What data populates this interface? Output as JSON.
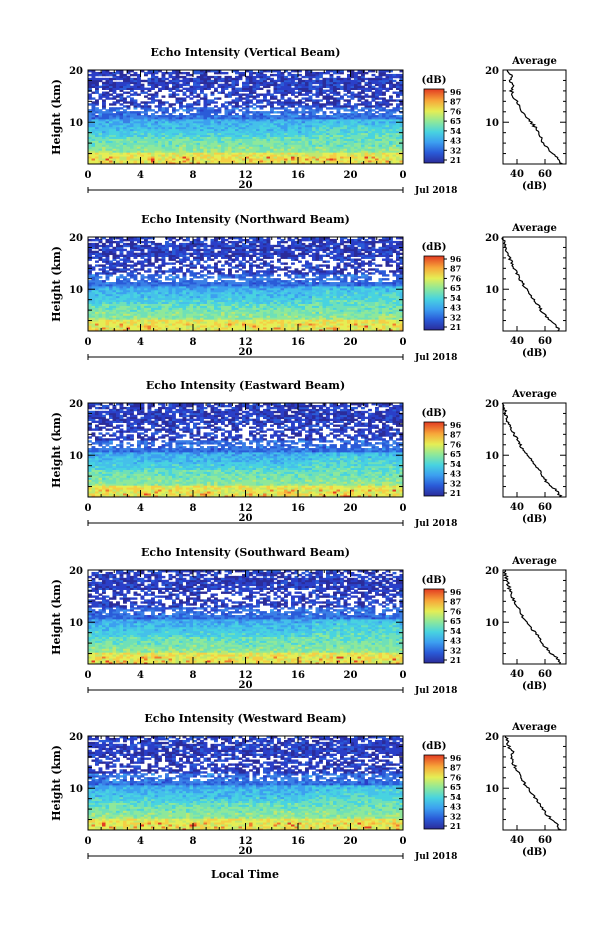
{
  "figure": {
    "xlabel_bottom": "Local Time",
    "date_label": "Jul 2018",
    "day_label": "20",
    "colorbar_unit": "(dB)",
    "colorbar_ticks": [
      "96",
      "87",
      "76",
      "65",
      "54",
      "43",
      "32",
      "21"
    ],
    "avg_title": "Average",
    "avg_xlabel": "(dB)"
  },
  "chart_data": [
    {
      "type": "heatmap",
      "title": "Echo Intensity (Vertical Beam)",
      "ylabel": "Height (km)",
      "xlim": [
        0,
        24
      ],
      "ylim": [
        2,
        20
      ],
      "x_ticks": [
        "0",
        "4",
        "8",
        "12",
        "16",
        "20",
        "0"
      ],
      "y_ticks": [
        "20",
        "10"
      ],
      "colorbar": {
        "label": "(dB)",
        "range": [
          21,
          96
        ],
        "ticks": [
          "96",
          "87",
          "76",
          "65",
          "54",
          "43",
          "32",
          "21"
        ]
      },
      "average_profile": {
        "type": "line",
        "title": "Average",
        "xlabel": "(dB)",
        "x_ticks": [
          "40",
          "60"
        ],
        "xlim": [
          30,
          75
        ],
        "height_km": [
          2,
          3,
          4,
          5,
          6,
          7,
          8,
          9,
          10,
          11,
          12,
          13,
          14,
          15,
          16,
          17,
          18,
          19,
          20
        ],
        "dB": [
          72,
          70,
          66,
          62,
          59,
          57,
          55,
          53,
          50,
          47,
          44,
          42,
          40,
          37,
          36,
          38,
          35,
          36,
          33
        ]
      }
    },
    {
      "type": "heatmap",
      "title": "Echo Intensity (Northward Beam)",
      "ylabel": "Height (km)",
      "xlim": [
        0,
        24
      ],
      "ylim": [
        2,
        20
      ],
      "x_ticks": [
        "0",
        "4",
        "8",
        "12",
        "16",
        "20",
        "0"
      ],
      "y_ticks": [
        "20",
        "10"
      ],
      "colorbar": {
        "label": "(dB)",
        "range": [
          21,
          96
        ],
        "ticks": [
          "96",
          "87",
          "76",
          "65",
          "54",
          "43",
          "32",
          "21"
        ]
      },
      "average_profile": {
        "type": "line",
        "title": "Average",
        "xlabel": "(dB)",
        "x_ticks": [
          "40",
          "60"
        ],
        "xlim": [
          30,
          75
        ],
        "height_km": [
          2,
          3,
          4,
          5,
          6,
          7,
          8,
          9,
          10,
          11,
          12,
          13,
          14,
          15,
          16,
          17,
          18,
          19,
          20
        ],
        "dB": [
          70,
          68,
          64,
          60,
          57,
          55,
          52,
          50,
          47,
          44,
          42,
          40,
          38,
          36,
          35,
          33,
          32,
          31,
          30
        ]
      }
    },
    {
      "type": "heatmap",
      "title": "Echo Intensity (Eastward Beam)",
      "ylabel": "Height (km)",
      "xlim": [
        0,
        24
      ],
      "ylim": [
        2,
        20
      ],
      "x_ticks": [
        "0",
        "4",
        "8",
        "12",
        "16",
        "20",
        "0"
      ],
      "y_ticks": [
        "20",
        "10"
      ],
      "colorbar": {
        "label": "(dB)",
        "range": [
          21,
          96
        ],
        "ticks": [
          "96",
          "87",
          "76",
          "65",
          "54",
          "43",
          "32",
          "21"
        ]
      },
      "average_profile": {
        "type": "line",
        "title": "Average",
        "xlabel": "(dB)",
        "x_ticks": [
          "40",
          "60"
        ],
        "xlim": [
          30,
          75
        ],
        "height_km": [
          2,
          3,
          4,
          5,
          6,
          7,
          8,
          9,
          10,
          11,
          12,
          13,
          14,
          15,
          16,
          17,
          18,
          19,
          20
        ],
        "dB": [
          71,
          69,
          65,
          61,
          58,
          56,
          53,
          51,
          48,
          45,
          42,
          40,
          38,
          36,
          34,
          33,
          32,
          31,
          30
        ]
      }
    },
    {
      "type": "heatmap",
      "title": "Echo Intensity (Southward Beam)",
      "ylabel": "Height (km)",
      "xlim": [
        0,
        24
      ],
      "ylim": [
        2,
        20
      ],
      "x_ticks": [
        "0",
        "4",
        "8",
        "12",
        "16",
        "20",
        "0"
      ],
      "y_ticks": [
        "20",
        "10"
      ],
      "colorbar": {
        "label": "(dB)",
        "range": [
          21,
          96
        ],
        "ticks": [
          "96",
          "87",
          "76",
          "65",
          "54",
          "43",
          "32",
          "21"
        ]
      },
      "average_profile": {
        "type": "line",
        "title": "Average",
        "xlabel": "(dB)",
        "x_ticks": [
          "40",
          "60"
        ],
        "xlim": [
          30,
          75
        ],
        "height_km": [
          2,
          3,
          4,
          5,
          6,
          7,
          8,
          9,
          10,
          11,
          12,
          13,
          14,
          15,
          16,
          17,
          18,
          19,
          20
        ],
        "dB": [
          71,
          69,
          65,
          61,
          58,
          56,
          53,
          50,
          47,
          44,
          42,
          40,
          38,
          36,
          35,
          34,
          33,
          32,
          31
        ]
      }
    },
    {
      "type": "heatmap",
      "title": "Echo Intensity (Westward Beam)",
      "ylabel": "Height (km)",
      "xlim": [
        0,
        24
      ],
      "ylim": [
        2,
        20
      ],
      "x_ticks": [
        "0",
        "4",
        "8",
        "12",
        "16",
        "20",
        "0"
      ],
      "y_ticks": [
        "20",
        "10"
      ],
      "colorbar": {
        "label": "(dB)",
        "range": [
          21,
          96
        ],
        "ticks": [
          "96",
          "87",
          "76",
          "65",
          "54",
          "43",
          "32",
          "21"
        ]
      },
      "average_profile": {
        "type": "line",
        "title": "Average",
        "xlabel": "(dB)",
        "x_ticks": [
          "40",
          "60"
        ],
        "xlim": [
          30,
          75
        ],
        "height_km": [
          2,
          3,
          4,
          5,
          6,
          7,
          8,
          9,
          10,
          11,
          12,
          13,
          14,
          15,
          16,
          17,
          18,
          19,
          20
        ],
        "dB": [
          71,
          69,
          65,
          61,
          58,
          56,
          53,
          51,
          48,
          45,
          43,
          41,
          39,
          37,
          36,
          37,
          34,
          33,
          32
        ]
      }
    }
  ]
}
